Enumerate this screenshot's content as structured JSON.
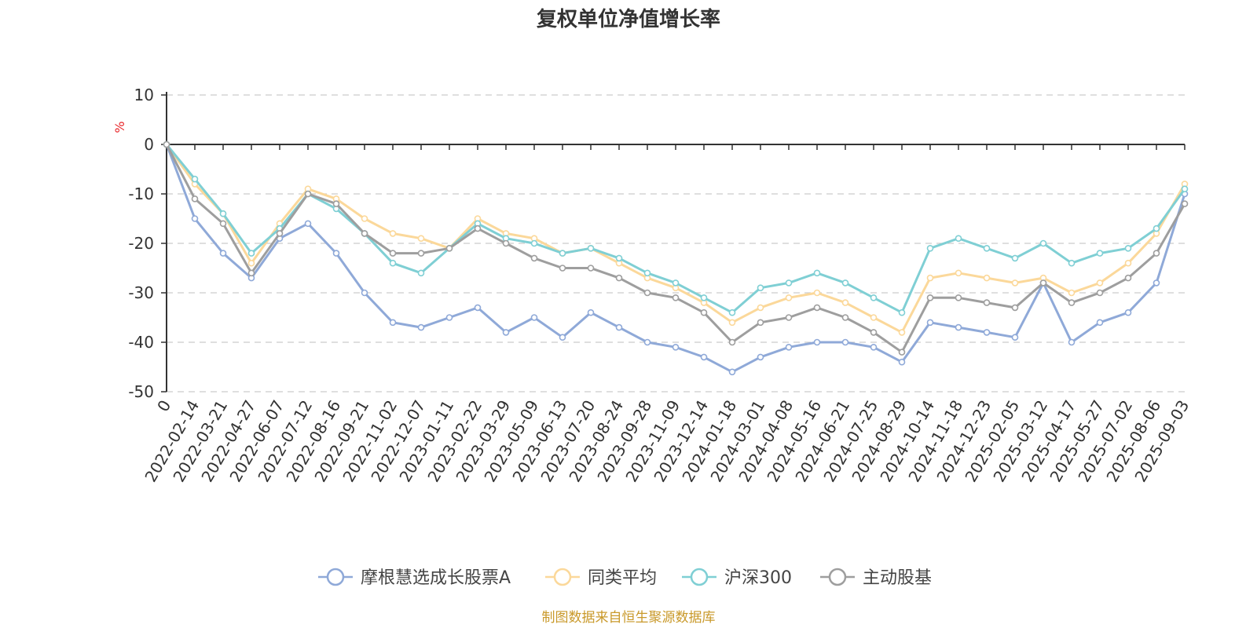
{
  "chart_data": {
    "type": "line",
    "title": "复权单位净值增长率",
    "ylabel": "%",
    "ylim": [
      -50,
      10
    ],
    "yticks": [
      10,
      0,
      -10,
      -20,
      -30,
      -40,
      -50
    ],
    "grid": true,
    "legend_position": "bottom",
    "x": [
      "0",
      "2022-02-14",
      "2022-03-21",
      "2022-04-27",
      "2022-06-07",
      "2022-07-12",
      "2022-08-16",
      "2022-09-21",
      "2022-11-02",
      "2022-12-07",
      "2023-01-11",
      "2023-02-22",
      "2023-03-29",
      "2023-05-09",
      "2023-06-13",
      "2023-07-20",
      "2023-08-24",
      "2023-09-28",
      "2023-11-09",
      "2023-12-14",
      "2024-01-18",
      "2024-03-01",
      "2024-04-08",
      "2024-05-16",
      "2024-06-21",
      "2024-07-25",
      "2024-08-29",
      "2024-10-14",
      "2024-11-18",
      "2024-12-23",
      "2025-02-05",
      "2025-03-12",
      "2025-04-17",
      "2025-05-27",
      "2025-07-02",
      "2025-08-06",
      "2025-09-03"
    ],
    "series": [
      {
        "name": "摩根慧选成长股票A",
        "color": "#8fa9d8",
        "values": [
          0,
          -15,
          -22,
          -27,
          -19,
          -16,
          -22,
          -30,
          -36,
          -37,
          -35,
          -33,
          -38,
          -35,
          -39,
          -34,
          -37,
          -40,
          -41,
          -43,
          -46,
          -43,
          -41,
          -40,
          -40,
          -41,
          -44,
          -36,
          -37,
          -38,
          -39,
          -28,
          -40,
          -36,
          -34,
          -28,
          -10
        ]
      },
      {
        "name": "同类平均",
        "color": "#fbd89a",
        "values": [
          0,
          -8,
          -14,
          -24,
          -16,
          -9,
          -11,
          -15,
          -18,
          -19,
          -21,
          -15,
          -18,
          -19,
          -22,
          -21,
          -24,
          -27,
          -29,
          -32,
          -36,
          -33,
          -31,
          -30,
          -32,
          -35,
          -38,
          -27,
          -26,
          -27,
          -28,
          -27,
          -30,
          -28,
          -24,
          -18,
          -8
        ]
      },
      {
        "name": "沪深300",
        "color": "#7fcfd4",
        "values": [
          0,
          -7,
          -14,
          -22,
          -17,
          -10,
          -13,
          -18,
          -24,
          -26,
          -21,
          -16,
          -19,
          -20,
          -22,
          -21,
          -23,
          -26,
          -28,
          -31,
          -34,
          -29,
          -28,
          -26,
          -28,
          -31,
          -34,
          -21,
          -19,
          -21,
          -23,
          -20,
          -24,
          -22,
          -21,
          -17,
          -9
        ]
      },
      {
        "name": "主动股基",
        "color": "#9e9e9e",
        "values": [
          0,
          -11,
          -16,
          -26,
          -18,
          -10,
          -12,
          -18,
          -22,
          -22,
          -21,
          -17,
          -20,
          -23,
          -25,
          -25,
          -27,
          -30,
          -31,
          -34,
          -40,
          -36,
          -35,
          -33,
          -35,
          -38,
          -42,
          -31,
          -31,
          -32,
          -33,
          -28,
          -32,
          -30,
          -27,
          -22,
          -12
        ]
      }
    ]
  },
  "source_note": "制图数据来自恒生聚源数据库",
  "colors": {
    "source_text": "#c9992a",
    "unit_text": "#e8262a",
    "grid": "#cccccc",
    "axis": "#333333"
  }
}
